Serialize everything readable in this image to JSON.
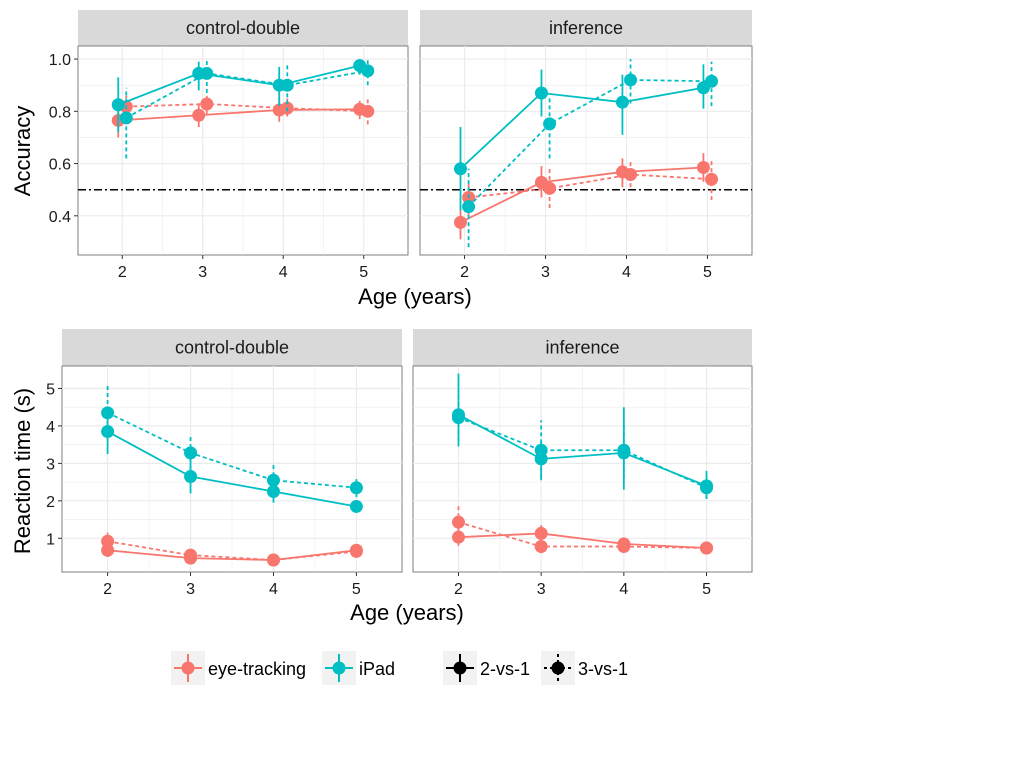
{
  "colors": {
    "eye_tracking": "#F8766D",
    "ipad": "#00BFC4",
    "reference": "#000000",
    "strip_bg": "#D9D9D9",
    "grid": "#EBEBEB"
  },
  "legend": {
    "eye_tracking": "eye-tracking",
    "ipad": "iPad",
    "two_vs_one": "2-vs-1",
    "three_vs_one": "3-vs-1"
  },
  "chart_data": [
    {
      "type": "line",
      "xlabel": "Age (years)",
      "ylabel": "Accuracy",
      "x": [
        2,
        3,
        4,
        5
      ],
      "xlim": [
        1.45,
        5.55
      ],
      "ylim": [
        0.25,
        1.05
      ],
      "yticks": [
        0.4,
        0.6,
        0.8,
        1.0
      ],
      "ytick_labels": [
        "0.4",
        "0.6",
        "0.8",
        "1.0"
      ],
      "reference_line": 0.5,
      "grid": true,
      "facets": [
        {
          "title": "control-double",
          "series": [
            {
              "name": "eye-tracking",
              "condition": "2-vs-1",
              "values": [
                0.765,
                0.785,
                0.805,
                0.808
              ],
              "lower": [
                0.7,
                0.74,
                0.76,
                0.77
              ],
              "upper": [
                0.83,
                0.83,
                0.85,
                0.84
              ]
            },
            {
              "name": "eye-tracking",
              "condition": "3-vs-1",
              "values": [
                0.818,
                0.828,
                0.812,
                0.8
              ],
              "lower": [
                0.77,
                0.79,
                0.78,
                0.75
              ],
              "upper": [
                0.86,
                0.87,
                0.85,
                0.85
              ]
            },
            {
              "name": "iPad",
              "condition": "2-vs-1",
              "values": [
                0.825,
                0.945,
                0.9,
                0.975
              ],
              "lower": [
                0.72,
                0.88,
                0.82,
                0.94
              ],
              "upper": [
                0.93,
                0.99,
                0.97,
                1.0
              ]
            },
            {
              "name": "iPad",
              "condition": "3-vs-1",
              "values": [
                0.775,
                0.945,
                0.9,
                0.955
              ],
              "lower": [
                0.62,
                0.87,
                0.8,
                0.9
              ],
              "upper": [
                0.89,
                1.0,
                0.98,
                1.0
              ]
            }
          ]
        },
        {
          "title": "inference",
          "series": [
            {
              "name": "eye-tracking",
              "condition": "2-vs-1",
              "values": [
                0.375,
                0.528,
                0.568,
                0.585
              ],
              "lower": [
                0.31,
                0.47,
                0.51,
                0.53
              ],
              "upper": [
                0.44,
                0.59,
                0.62,
                0.64
              ]
            },
            {
              "name": "eye-tracking",
              "condition": "3-vs-1",
              "values": [
                0.47,
                0.505,
                0.558,
                0.54
              ],
              "lower": [
                0.4,
                0.43,
                0.51,
                0.46
              ],
              "upper": [
                0.53,
                0.58,
                0.61,
                0.61
              ]
            },
            {
              "name": "iPad",
              "condition": "2-vs-1",
              "values": [
                0.58,
                0.87,
                0.835,
                0.89
              ],
              "lower": [
                0.42,
                0.78,
                0.71,
                0.81
              ],
              "upper": [
                0.74,
                0.96,
                0.94,
                0.98
              ]
            },
            {
              "name": "iPad",
              "condition": "3-vs-1",
              "values": [
                0.435,
                0.752,
                0.92,
                0.915
              ],
              "lower": [
                0.28,
                0.62,
                0.83,
                0.82
              ],
              "upper": [
                0.58,
                0.86,
                1.0,
                0.99
              ]
            }
          ]
        }
      ]
    },
    {
      "type": "line",
      "xlabel": "Age (years)",
      "ylabel": "Reaction time (s)",
      "x": [
        2,
        3,
        4,
        5
      ],
      "xlim": [
        1.45,
        5.55
      ],
      "ylim": [
        0.1,
        5.6
      ],
      "yticks": [
        1,
        2,
        3,
        4,
        5
      ],
      "ytick_labels": [
        "1",
        "2",
        "3",
        "4",
        "5"
      ],
      "grid": true,
      "facets": [
        {
          "title": "control-double",
          "series": [
            {
              "name": "eye-tracking",
              "condition": "2-vs-1",
              "values": [
                0.68,
                0.47,
                0.42,
                0.68
              ],
              "lower": [
                0.5,
                0.38,
                0.35,
                0.52
              ],
              "upper": [
                0.85,
                0.58,
                0.49,
                0.82
              ]
            },
            {
              "name": "eye-tracking",
              "condition": "3-vs-1",
              "values": [
                0.92,
                0.55,
                0.42,
                0.65
              ],
              "lower": [
                0.72,
                0.4,
                0.34,
                0.48
              ],
              "upper": [
                1.15,
                0.7,
                0.5,
                0.8
              ]
            },
            {
              "name": "iPad",
              "condition": "2-vs-1",
              "values": [
                3.85,
                2.65,
                2.25,
                1.85
              ],
              "lower": [
                3.25,
                2.2,
                1.95,
                1.7
              ],
              "upper": [
                4.45,
                3.1,
                2.6,
                2.0
              ]
            },
            {
              "name": "iPad",
              "condition": "3-vs-1",
              "values": [
                4.35,
                3.28,
                2.55,
                2.35
              ],
              "lower": [
                3.65,
                2.85,
                2.1,
                2.1
              ],
              "upper": [
                5.1,
                3.72,
                3.0,
                2.6
              ]
            }
          ]
        },
        {
          "title": "inference",
          "series": [
            {
              "name": "eye-tracking",
              "condition": "2-vs-1",
              "values": [
                1.03,
                1.13,
                0.85,
                0.74
              ],
              "lower": [
                0.8,
                0.9,
                0.7,
                0.65
              ],
              "upper": [
                1.25,
                1.35,
                1.0,
                0.82
              ]
            },
            {
              "name": "eye-tracking",
              "condition": "3-vs-1",
              "values": [
                1.43,
                0.78,
                0.78,
                0.74
              ],
              "lower": [
                1.0,
                0.6,
                0.65,
                0.65
              ],
              "upper": [
                1.88,
                0.95,
                0.92,
                0.82
              ]
            },
            {
              "name": "iPad",
              "condition": "2-vs-1",
              "values": [
                4.3,
                3.12,
                3.28,
                2.4
              ],
              "lower": [
                3.45,
                2.55,
                2.3,
                2.05
              ],
              "upper": [
                5.4,
                3.6,
                4.5,
                2.8
              ]
            },
            {
              "name": "iPad",
              "condition": "3-vs-1",
              "values": [
                4.22,
                3.35,
                3.35,
                2.35
              ],
              "lower": [
                3.6,
                2.6,
                2.6,
                2.05
              ],
              "upper": [
                4.95,
                4.15,
                4.05,
                2.65
              ]
            }
          ]
        }
      ]
    }
  ]
}
